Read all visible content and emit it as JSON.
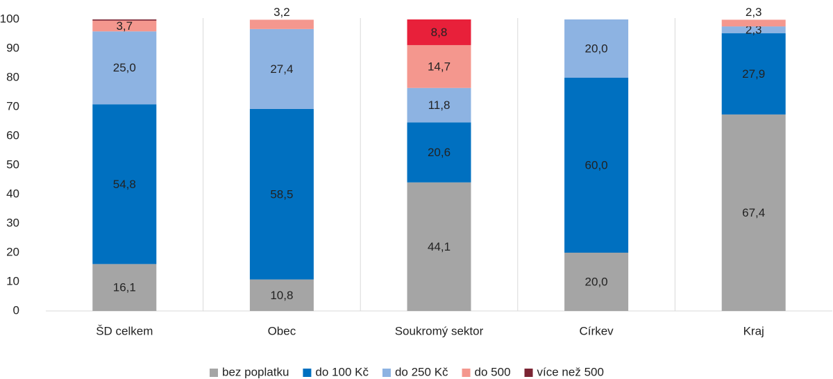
{
  "chart_data": {
    "type": "stacked_bar",
    "categories": [
      "ŠD celkem",
      "Obec",
      "Soukromý sektor",
      "Církev",
      "Kraj"
    ],
    "series": [
      {
        "name": "bez poplatku",
        "color": "#a5a5a5",
        "values": [
          16.1,
          10.8,
          44.1,
          20.0,
          67.4
        ],
        "value_labels": [
          "16,1",
          "10,8",
          "44,1",
          "20,0",
          "67,4"
        ]
      },
      {
        "name": "do 100 Kč",
        "color": "#0070c0",
        "values": [
          54.8,
          58.5,
          20.6,
          60.0,
          27.9
        ],
        "value_labels": [
          "54,8",
          "58,5",
          "20,6",
          "60,0",
          "27,9"
        ]
      },
      {
        "name": "do 250 Kč",
        "color": "#8db3e2",
        "values": [
          25.0,
          27.4,
          11.8,
          20.0,
          2.3
        ],
        "value_labels": [
          "25,0",
          "27,4",
          "11,8",
          "20,0",
          "2,3"
        ]
      },
      {
        "name": "do 500",
        "color": "#f4978e",
        "values": [
          3.7,
          3.2,
          14.7,
          null,
          2.3
        ],
        "value_labels": [
          "3,7",
          "3,2",
          "14,7",
          null,
          "2,3"
        ]
      },
      {
        "name": "více než 500",
        "color": "#7b2433",
        "colors": [
          "#7b2433",
          "#7b2433",
          "#e8203a",
          "#7b2433",
          "#7b2433"
        ],
        "values": [
          0.4,
          null,
          8.8,
          null,
          null
        ],
        "value_labels": [
          null,
          null,
          "8,8",
          null,
          null
        ]
      }
    ],
    "ylim": [
      0,
      100
    ],
    "yticks": [
      0,
      10,
      20,
      30,
      40,
      50,
      60,
      70,
      80,
      90,
      100
    ],
    "legend": "bottom"
  }
}
